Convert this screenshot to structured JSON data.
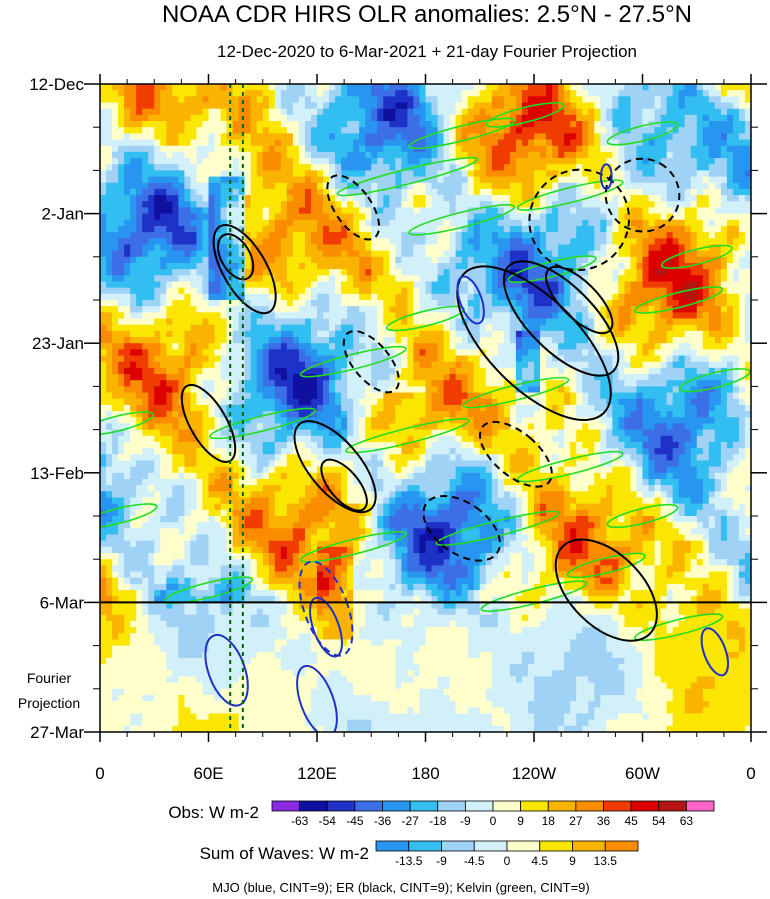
{
  "chart_data": {
    "type": "heatmap",
    "title": "NOAA CDR HIRS OLR anomalies: 2.5°N - 27.5°N",
    "subtitle": "12-Dec-2020 to 6-Mar-2021 + 21-day Fourier Projection",
    "x_ticks": [
      "0",
      "60E",
      "120E",
      "180",
      "120W",
      "60W",
      "0"
    ],
    "x_tick_lon": [
      0,
      60,
      120,
      180,
      240,
      300,
      360
    ],
    "y_ticks": [
      "12-Dec",
      "2-Jan",
      "23-Jan",
      "13-Feb",
      "6-Mar",
      "27-Mar"
    ],
    "y_tick_day": [
      0,
      21,
      42,
      63,
      84,
      105
    ],
    "projection_label_line1": "Fourier",
    "projection_label_line2": "Projection",
    "projection_start_day": 84,
    "xlim": [
      0,
      360
    ],
    "ylim_days": [
      0,
      105
    ],
    "obs_colorbar": {
      "label": "Obs: W m-2",
      "levels": [
        "-63",
        "-54",
        "-45",
        "-36",
        "-27",
        "-18",
        "-9",
        "0",
        "9",
        "18",
        "27",
        "36",
        "45",
        "54",
        "63"
      ],
      "colors": [
        "#8a2be2",
        "#1010a0",
        "#1e32c8",
        "#3c6ee6",
        "#2896f0",
        "#32bef0",
        "#a0d2f5",
        "#d2f0fa",
        "#ffffcc",
        "#fae600",
        "#fab400",
        "#fa8c00",
        "#f03c00",
        "#dc0000",
        "#b41414",
        "#ff64c8"
      ]
    },
    "waves_colorbar": {
      "label": "Sum of Waves: W m-2",
      "levels": [
        "-13.5",
        "-9",
        "-4.5",
        "0",
        "4.5",
        "9",
        "13.5"
      ],
      "colors": [
        "#2896f0",
        "#32bef0",
        "#a0d2f5",
        "#d2f0fa",
        "#ffffcc",
        "#fae600",
        "#fab400",
        "#fa8c00"
      ]
    },
    "footer_note": "MJO (blue, CINT=9); ER (black, CINT=9); Kelvin (green, CINT=9)",
    "series": [
      {
        "color": "#1e32c8"
      },
      {
        "color": "#000000"
      },
      {
        "color": "#22dd22"
      }
    ],
    "reference_lines_lon": [
      72,
      79
    ],
    "reference_line_color": "#006400"
  }
}
